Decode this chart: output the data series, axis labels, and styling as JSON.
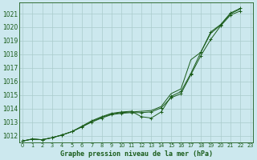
{
  "title": "Graphe pression niveau de la mer (hPa)",
  "bg_color": "#cce8ee",
  "grid_color": "#aacccc",
  "line_color": "#1a5c1a",
  "ylim": [
    1011.5,
    1021.8
  ],
  "yticks": [
    1012,
    1013,
    1014,
    1015,
    1016,
    1017,
    1018,
    1019,
    1020,
    1021
  ],
  "xlim": [
    -0.3,
    23.3
  ],
  "x_labels": [
    "0",
    "1",
    "2",
    "3",
    "4",
    "5",
    "6",
    "7",
    "8",
    "9",
    "10",
    "11",
    "12",
    "13",
    "14",
    "15",
    "16",
    "17",
    "18",
    "19",
    "20",
    "21",
    "22",
    "23"
  ],
  "series_bottom": [
    1011.6,
    1011.75,
    1011.7,
    1011.85,
    1012.05,
    1012.3,
    1012.65,
    1013.0,
    1013.3,
    1013.55,
    1013.65,
    1013.7,
    1013.7,
    1013.75,
    1014.05,
    1014.8,
    1015.1,
    1016.5,
    1017.9,
    1019.1,
    1020.1,
    1020.9,
    1021.2
  ],
  "series_upper": [
    1011.6,
    1011.75,
    1011.7,
    1011.85,
    1012.05,
    1012.3,
    1012.65,
    1013.05,
    1013.35,
    1013.6,
    1013.7,
    1013.75,
    1013.8,
    1013.85,
    1014.15,
    1015.1,
    1015.45,
    1017.6,
    1018.15,
    1019.55,
    1020.15,
    1021.0,
    1021.35
  ],
  "series_dip": [
    1011.6,
    1011.75,
    1011.7,
    1011.85,
    1012.05,
    1012.3,
    1012.7,
    1013.1,
    1013.4,
    1013.65,
    1013.75,
    1013.8,
    1013.4,
    1013.3,
    1013.75,
    1014.9,
    1015.25,
    1016.6,
    1018.15,
    1019.65,
    1020.2,
    1021.05,
    1021.4
  ],
  "ytick_fontsize": 5.5,
  "xtick_fontsize": 4.8,
  "title_fontsize": 6.0
}
